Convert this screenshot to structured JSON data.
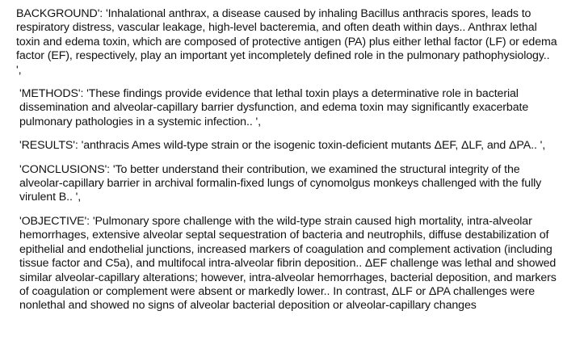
{
  "document": {
    "paragraphs": [
      {
        "key": "background",
        "text": "BACKGROUND': 'Inhalational anthrax, a disease caused by inhaling Bacillus anthracis spores, leads to respiratory distress, vascular leakage, high-level bacteremia, and often death within days.. Anthrax lethal toxin and edema toxin, which are composed of protective antigen (PA) plus either lethal factor (LF) or edema factor (EF), respectively, play an important yet incompletely defined role in the pulmonary pathophysiology.. ',"
      },
      {
        "key": "methods",
        "text": "'METHODS': 'These findings provide evidence that lethal toxin plays a determinative role in bacterial dissemination and alveolar-capillary barrier dysfunction, and edema toxin may significantly exacerbate pulmonary pathologies in a systemic infection.. ',"
      },
      {
        "key": "results",
        "text": "'RESULTS': 'anthracis Ames wild-type strain or the isogenic toxin-deficient mutants ΔEF, ΔLF, and ΔPA.. ',"
      },
      {
        "key": "conclusions",
        "text": "'CONCLUSIONS': 'To better understand their contribution, we examined the structural integrity of the alveolar-capillary barrier in archival formalin-fixed lungs of cynomolgus monkeys challenged with the fully virulent B.. ',"
      },
      {
        "key": "objective",
        "text": "'OBJECTIVE': 'Pulmonary spore challenge with the wild-type strain caused high mortality, intra-alveolar hemorrhages, extensive alveolar septal sequestration of bacteria and neutrophils, diffuse destabilization of epithelial and endothelial junctions, increased markers of coagulation and complement activation (including tissue factor and C5a), and multifocal intra-alveolar fibrin deposition.. ΔEF challenge was lethal and showed similar alveolar-capillary alterations; however, intra-alveolar hemorrhages, bacterial deposition, and markers of coagulation or complement were absent or markedly lower.. In contrast, ΔLF or ΔPA challenges were nonlethal and showed no signs of alveolar bacterial deposition or alveolar-capillary changes"
      }
    ]
  }
}
